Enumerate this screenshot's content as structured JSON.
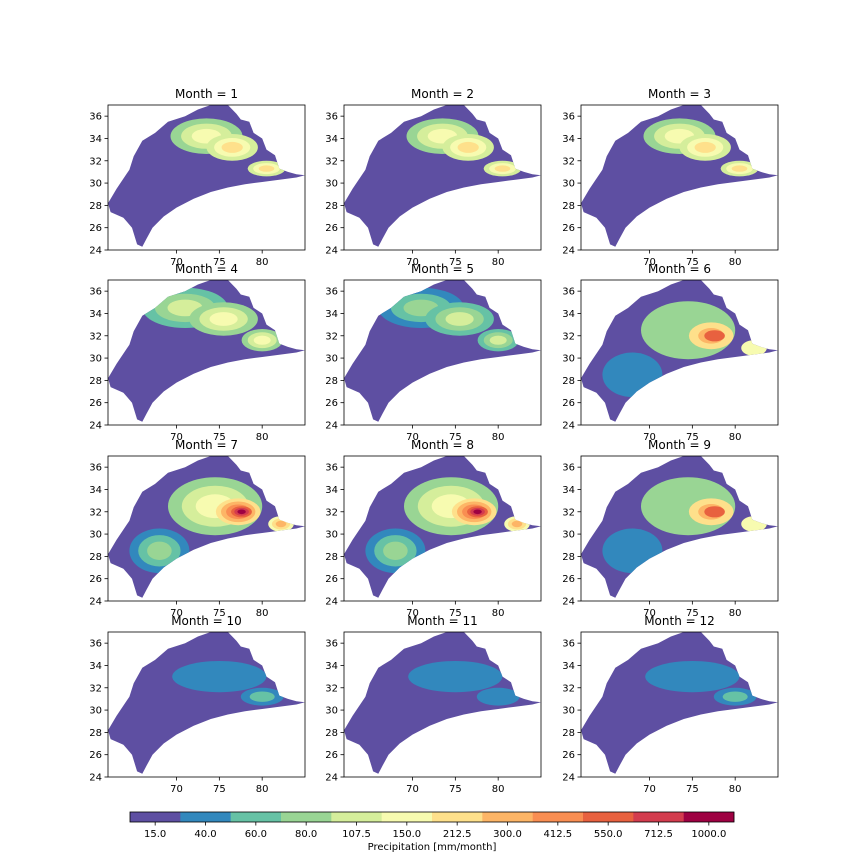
{
  "chart_data": {
    "type": "heatmap",
    "panels": [
      {
        "title": "Month = 1",
        "month": 1
      },
      {
        "title": "Month = 2",
        "month": 2
      },
      {
        "title": "Month = 3",
        "month": 3
      },
      {
        "title": "Month = 4",
        "month": 4
      },
      {
        "title": "Month = 5",
        "month": 5
      },
      {
        "title": "Month = 6",
        "month": 6
      },
      {
        "title": "Month = 7",
        "month": 7
      },
      {
        "title": "Month = 8",
        "month": 8
      },
      {
        "title": "Month = 9",
        "month": 9
      },
      {
        "title": "Month = 10",
        "month": 10
      },
      {
        "title": "Month = 11",
        "month": 11
      },
      {
        "title": "Month = 12",
        "month": 12
      }
    ],
    "x_ticks": [
      "70",
      "75",
      "80"
    ],
    "x_tick_values": [
      70,
      75,
      80
    ],
    "y_ticks": [
      "24",
      "26",
      "28",
      "30",
      "32",
      "34",
      "36"
    ],
    "y_tick_values": [
      24,
      26,
      28,
      30,
      32,
      34,
      36
    ],
    "xlim": [
      62,
      85
    ],
    "ylim": [
      24,
      37
    ],
    "colorbar": {
      "label": "Precipitation [mm/month]",
      "levels": [
        "15.0",
        "40.0",
        "60.0",
        "80.0",
        "107.5",
        "150.0",
        "212.5",
        "300.0",
        "412.5",
        "550.0",
        "712.5",
        "1000.0"
      ],
      "colors": [
        "#5e4fa2",
        "#3288bd",
        "#66c2a5",
        "#99d594",
        "#d5ee9b",
        "#f7fbb0",
        "#fee08b",
        "#fdb566",
        "#f98e52",
        "#e8613f",
        "#d33c4e",
        "#9e0142"
      ]
    },
    "grid": false,
    "legend": "colorbar-bottom",
    "cmap": "Spectral_r"
  }
}
